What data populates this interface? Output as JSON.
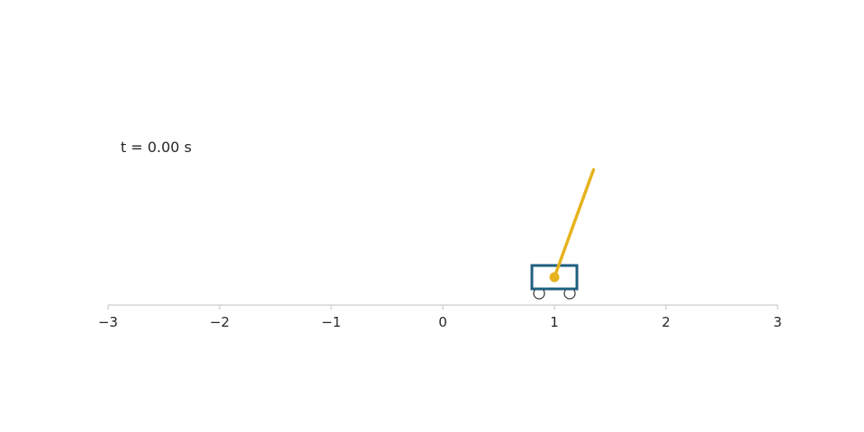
{
  "chart_data": {
    "type": "animation-frame",
    "time_label": "t = 0.00 s",
    "xlim": [
      -3,
      3
    ],
    "ticks": [
      -3,
      -2,
      -1,
      0,
      1,
      2,
      3
    ],
    "tick_labels": [
      "−3",
      "−2",
      "−1",
      "0",
      "1",
      "2",
      "3"
    ],
    "cart_position": 1.0,
    "pendulum_angle_deg": 20,
    "colors": {
      "cart": "#1f5f7f",
      "pendulum": "#e6b31e",
      "axis": "#cccccc",
      "wheel": "#333333"
    }
  }
}
